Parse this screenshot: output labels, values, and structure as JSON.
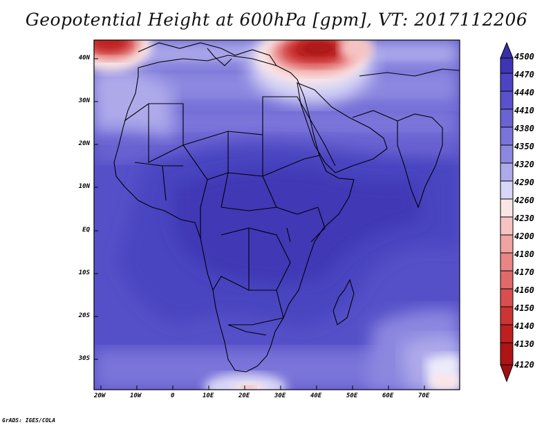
{
  "title": "Geopotential Height at 600hPa [gpm], VT: 2017112206",
  "footer": "GrADS: IGES/COLA",
  "lat_labels": [
    "40N",
    "30N",
    "20N",
    "10N",
    "EQ",
    "10S",
    "20S",
    "30S"
  ],
  "lon_labels": [
    "20W",
    "10W",
    "0",
    "10E",
    "20E",
    "30E",
    "40E",
    "50E",
    "60E",
    "70E"
  ],
  "colorbar": {
    "levels": [
      "4500",
      "4470",
      "4440",
      "4410",
      "4380",
      "4350",
      "4320",
      "4290",
      "4260",
      "4230",
      "4200",
      "4180",
      "4170",
      "4160",
      "4150",
      "4140",
      "4130",
      "4120"
    ],
    "colors": [
      "#3a2ea8",
      "#3f34b4",
      "#4d44c4",
      "#5a52cc",
      "#6a63d2",
      "#7a74da",
      "#8c88e0",
      "#aeaaea",
      "#d8d6f6",
      "#fbe5e5",
      "#f6c3c3",
      "#efa3a3",
      "#e88585",
      "#e06a6a",
      "#d84f4f",
      "#cd3434",
      "#be2020",
      "#ad1414"
    ]
  },
  "map": {
    "domain_lon": [
      -22,
      80
    ],
    "domain_lat": [
      -37,
      45
    ],
    "variable": "Geopotential Height",
    "level_hpa": 600,
    "valid_time": "2017112206"
  }
}
